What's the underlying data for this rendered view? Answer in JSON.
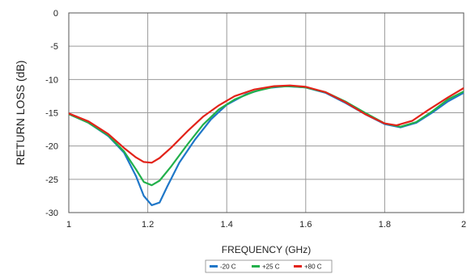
{
  "chart_data": {
    "type": "line",
    "xlabel": "FREQUENCY (GHz)",
    "ylabel": "RETURN LOSS (dB)",
    "xlim": [
      1,
      2
    ],
    "ylim": [
      -30,
      0
    ],
    "x_ticks": [
      1,
      1.2,
      1.4,
      1.6,
      1.8,
      2
    ],
    "x_tick_labels": [
      "1",
      "1.2",
      "1.4",
      "1.6",
      "1.8",
      "2"
    ],
    "y_ticks": [
      0,
      -5,
      -10,
      -15,
      -20,
      -25,
      -30
    ],
    "y_tick_labels": [
      "0",
      "-5",
      "-10",
      "-15",
      "-20",
      "-25",
      "-30"
    ],
    "grid": true,
    "legend_position": "bottom-center",
    "series": [
      {
        "name": "-20 C",
        "color": "#1f77c8",
        "points": [
          [
            1.0,
            -15.2
          ],
          [
            1.05,
            -16.5
          ],
          [
            1.1,
            -18.5
          ],
          [
            1.14,
            -21.0
          ],
          [
            1.17,
            -24.5
          ],
          [
            1.19,
            -27.5
          ],
          [
            1.21,
            -28.9
          ],
          [
            1.23,
            -28.5
          ],
          [
            1.25,
            -26.0
          ],
          [
            1.28,
            -22.5
          ],
          [
            1.32,
            -19.0
          ],
          [
            1.36,
            -16.0
          ],
          [
            1.4,
            -13.8
          ],
          [
            1.45,
            -12.2
          ],
          [
            1.5,
            -11.3
          ],
          [
            1.55,
            -11.0
          ],
          [
            1.6,
            -11.2
          ],
          [
            1.65,
            -12.0
          ],
          [
            1.7,
            -13.5
          ],
          [
            1.75,
            -15.2
          ],
          [
            1.8,
            -16.7
          ],
          [
            1.84,
            -17.2
          ],
          [
            1.88,
            -16.5
          ],
          [
            1.92,
            -15.0
          ],
          [
            1.96,
            -13.3
          ],
          [
            2.0,
            -12.0
          ]
        ]
      },
      {
        "name": "+25 C",
        "color": "#22b04b",
        "points": [
          [
            1.0,
            -15.2
          ],
          [
            1.05,
            -16.5
          ],
          [
            1.1,
            -18.4
          ],
          [
            1.14,
            -20.8
          ],
          [
            1.17,
            -23.5
          ],
          [
            1.19,
            -25.4
          ],
          [
            1.21,
            -25.9
          ],
          [
            1.23,
            -25.2
          ],
          [
            1.26,
            -23.0
          ],
          [
            1.3,
            -19.8
          ],
          [
            1.34,
            -16.8
          ],
          [
            1.38,
            -14.5
          ],
          [
            1.42,
            -13.0
          ],
          [
            1.47,
            -11.8
          ],
          [
            1.52,
            -11.1
          ],
          [
            1.56,
            -11.0
          ],
          [
            1.6,
            -11.2
          ],
          [
            1.65,
            -11.9
          ],
          [
            1.7,
            -13.3
          ],
          [
            1.75,
            -15.0
          ],
          [
            1.8,
            -16.6
          ],
          [
            1.84,
            -17.1
          ],
          [
            1.88,
            -16.4
          ],
          [
            1.92,
            -14.8
          ],
          [
            1.96,
            -13.0
          ],
          [
            2.0,
            -11.8
          ]
        ]
      },
      {
        "name": "+80 C",
        "color": "#e2231a",
        "points": [
          [
            1.0,
            -15.1
          ],
          [
            1.05,
            -16.3
          ],
          [
            1.1,
            -18.2
          ],
          [
            1.14,
            -20.3
          ],
          [
            1.17,
            -21.7
          ],
          [
            1.19,
            -22.4
          ],
          [
            1.21,
            -22.5
          ],
          [
            1.23,
            -21.8
          ],
          [
            1.26,
            -20.2
          ],
          [
            1.3,
            -17.8
          ],
          [
            1.34,
            -15.6
          ],
          [
            1.38,
            -13.9
          ],
          [
            1.42,
            -12.5
          ],
          [
            1.47,
            -11.5
          ],
          [
            1.52,
            -11.0
          ],
          [
            1.56,
            -10.9
          ],
          [
            1.6,
            -11.1
          ],
          [
            1.65,
            -11.9
          ],
          [
            1.7,
            -13.4
          ],
          [
            1.75,
            -15.2
          ],
          [
            1.8,
            -16.6
          ],
          [
            1.83,
            -16.9
          ],
          [
            1.87,
            -16.2
          ],
          [
            1.91,
            -14.6
          ],
          [
            1.96,
            -12.7
          ],
          [
            2.0,
            -11.3
          ]
        ]
      }
    ]
  }
}
